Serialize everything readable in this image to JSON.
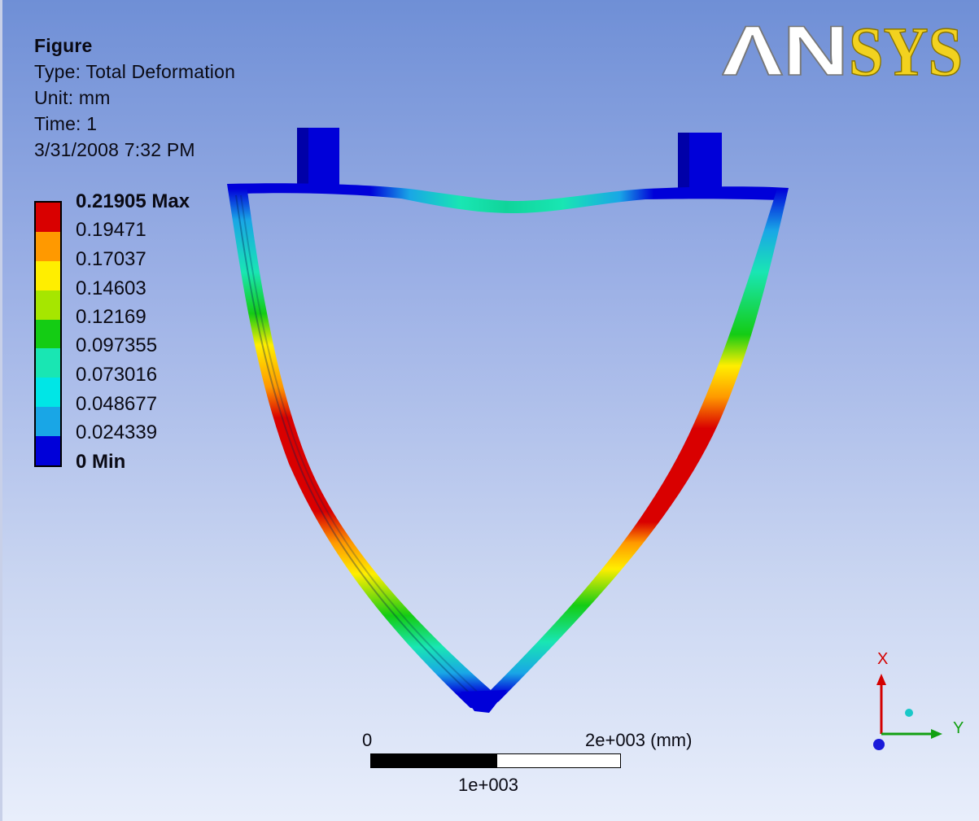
{
  "info": {
    "title": "Figure",
    "type": "Type: Total Deformation",
    "unit": "Unit: mm",
    "time": "Time: 1",
    "date": "3/31/2008 7:32 PM"
  },
  "logo": {
    "text": "ANSYS"
  },
  "legend": {
    "labels": [
      "0.21905 Max",
      "0.19471",
      "0.17037",
      "0.14603",
      "0.12169",
      "0.097355",
      "0.073016",
      "0.048677",
      "0.024339",
      "0 Min"
    ],
    "colors": [
      "#d90000",
      "#ff9900",
      "#ffee00",
      "#a6e600",
      "#14cc14",
      "#19e6b3",
      "#00e6e6",
      "#19a6e6",
      "#0000d9"
    ]
  },
  "scale_bar": {
    "zero": "0",
    "max": "2e+003 (mm)",
    "mid": "1e+003"
  },
  "triad": {
    "x_label": "X",
    "y_label": "Y"
  },
  "colors": {
    "background_top": "#6f8fd6",
    "background_bottom": "#e8eefb",
    "min": "#0000d9",
    "max": "#d90000"
  }
}
